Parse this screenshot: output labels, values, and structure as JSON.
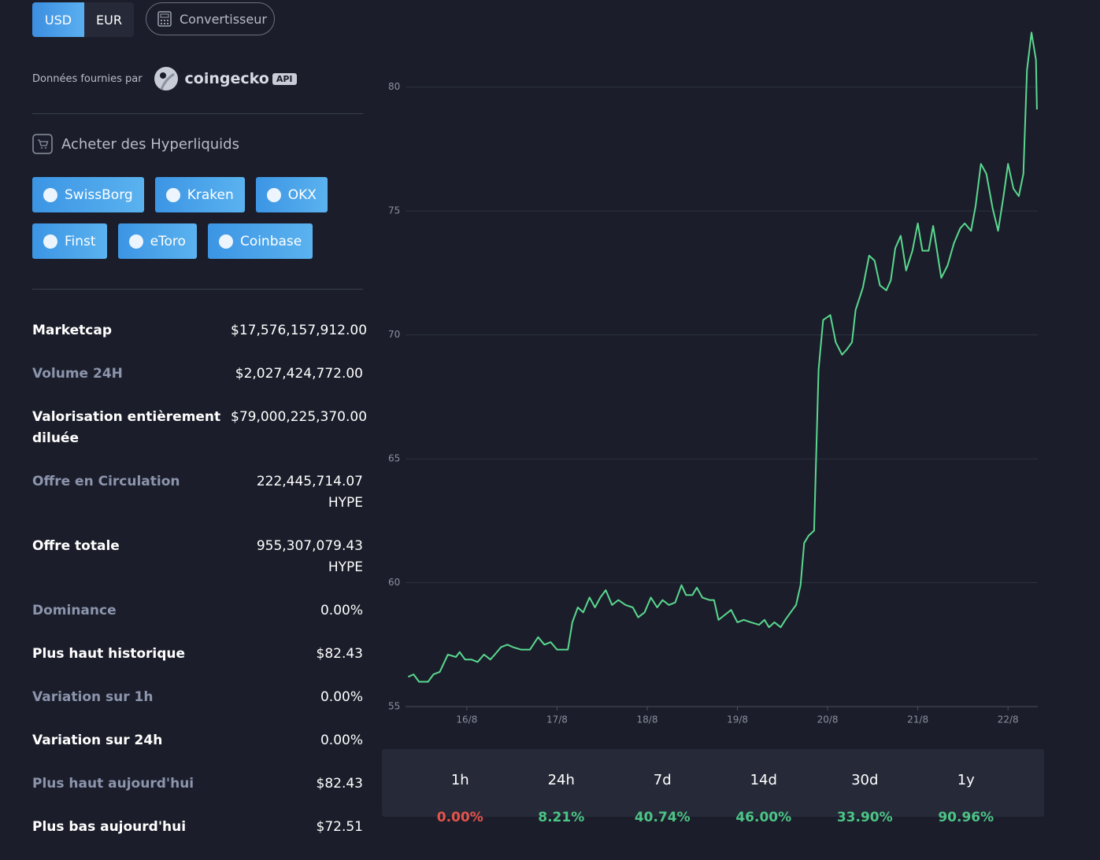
{
  "currency": [
    "USD",
    "EUR"
  ],
  "converter": "Convertisseur",
  "provider": {
    "label": "Données fournies par",
    "name": "coingecko",
    "badge": "API"
  },
  "buy": {
    "title": "Acheter des Hyperliquids",
    "exchanges": [
      "SwissBorg",
      "Kraken",
      "OKX",
      "Finst",
      "eToro",
      "Coinbase"
    ]
  },
  "stats": [
    {
      "label": "Marketcap",
      "value": "$17,576,157,912.00"
    },
    {
      "label": "Volume 24H",
      "value": "$2,027,424,772.00"
    },
    {
      "label": "Valorisation entièrement diluée",
      "value": "$79,000,225,370.00"
    },
    {
      "label": "Offre en Circulation",
      "value": "222,445,714.07 HYPE"
    },
    {
      "label": "Offre totale",
      "value": "955,307,079.43 HYPE"
    },
    {
      "label": "Dominance",
      "value": "0.00%"
    },
    {
      "label": "Plus haut historique",
      "value": "$82.43"
    },
    {
      "label": "Variation sur 1h",
      "value": "0.00%"
    },
    {
      "label": "Variation sur 24h",
      "value": "0.00%"
    },
    {
      "label": "Plus haut aujourd'hui",
      "value": "$82.43"
    },
    {
      "label": "Plus bas aujourd'hui",
      "value": "$72.51"
    }
  ],
  "periods": [
    {
      "label": "1h",
      "value": "0.00%",
      "color": "#e5534b"
    },
    {
      "label": "24h",
      "value": "8.21%",
      "color": "#4cc486"
    },
    {
      "label": "7d",
      "value": "40.74%",
      "color": "#4cc486"
    },
    {
      "label": "14d",
      "value": "46.00%",
      "color": "#4cc486"
    },
    {
      "label": "30d",
      "value": "33.90%",
      "color": "#4cc486"
    },
    {
      "label": "1y",
      "value": "90.96%",
      "color": "#4cc486"
    }
  ],
  "chart_data": {
    "type": "line",
    "color": "#5ad88f",
    "grid": true,
    "x": [
      15.35,
      15.41,
      15.47,
      15.57,
      15.63,
      15.7,
      15.79,
      15.88,
      15.92,
      15.98,
      16.05,
      16.12,
      16.19,
      16.26,
      16.31,
      16.38,
      16.45,
      16.51,
      16.6,
      16.7,
      16.79,
      16.86,
      16.93,
      17.0,
      17.07,
      17.12,
      17.17,
      17.23,
      17.29,
      17.36,
      17.42,
      17.48,
      17.54,
      17.61,
      17.68,
      17.76,
      17.84,
      17.9,
      17.97,
      18.04,
      18.11,
      18.17,
      18.24,
      18.31,
      18.38,
      18.43,
      18.5,
      18.55,
      18.61,
      18.69,
      18.74,
      18.79,
      18.86,
      18.93,
      19.0,
      19.07,
      19.15,
      19.24,
      19.3,
      19.35,
      19.41,
      19.48,
      19.53,
      19.59,
      19.65,
      19.7,
      19.74,
      19.79,
      19.85,
      19.9,
      19.95,
      20.03,
      20.09,
      20.16,
      20.21,
      20.27,
      20.31,
      20.39,
      20.46,
      20.52,
      20.58,
      20.65,
      20.7,
      20.75,
      20.81,
      20.87,
      20.94,
      21.0,
      21.05,
      21.12,
      21.17,
      21.26,
      21.33,
      21.4,
      21.47,
      21.52,
      21.59,
      21.64,
      21.7,
      21.76,
      21.83,
      21.89,
      21.95,
      22.0,
      22.06,
      22.12,
      22.17,
      22.21,
      22.26,
      22.31,
      22.32
    ],
    "values": [
      56.2,
      56.3,
      56.0,
      56.0,
      56.3,
      56.4,
      57.1,
      57.0,
      57.2,
      56.9,
      56.9,
      56.8,
      57.1,
      56.9,
      57.1,
      57.4,
      57.5,
      57.4,
      57.3,
      57.3,
      57.8,
      57.5,
      57.6,
      57.3,
      57.3,
      57.3,
      58.4,
      59.0,
      58.8,
      59.4,
      59.0,
      59.4,
      59.7,
      59.1,
      59.3,
      59.1,
      59.0,
      58.6,
      58.8,
      59.4,
      59.0,
      59.3,
      59.1,
      59.2,
      59.9,
      59.5,
      59.5,
      59.8,
      59.4,
      59.3,
      59.3,
      58.5,
      58.7,
      58.9,
      58.4,
      58.5,
      58.4,
      58.3,
      58.5,
      58.2,
      58.4,
      58.2,
      58.5,
      58.8,
      59.1,
      59.9,
      61.6,
      61.9,
      62.1,
      68.6,
      70.6,
      70.8,
      69.7,
      69.2,
      69.4,
      69.7,
      71.0,
      71.9,
      73.2,
      73.0,
      72.0,
      71.8,
      72.2,
      73.5,
      74.0,
      72.6,
      73.4,
      74.5,
      73.4,
      73.4,
      74.4,
      72.3,
      72.8,
      73.7,
      74.3,
      74.5,
      74.2,
      75.2,
      76.9,
      76.5,
      75.1,
      74.2,
      75.6,
      76.9,
      75.9,
      75.6,
      76.5,
      80.7,
      82.2,
      81.1,
      79.1
    ],
    "xlim": [
      15.32,
      22.33
    ],
    "xticks": [
      {
        "value": 16,
        "label": "16/8"
      },
      {
        "value": 17,
        "label": "17/8"
      },
      {
        "value": 18,
        "label": "18/8"
      },
      {
        "value": 19,
        "label": "19/8"
      },
      {
        "value": 20,
        "label": "20/8"
      },
      {
        "value": 21,
        "label": "21/8"
      },
      {
        "value": 22,
        "label": "22/8"
      }
    ],
    "ylim": [
      55,
      82.5
    ],
    "yticks": [
      55,
      60,
      65,
      70,
      75,
      80
    ]
  }
}
